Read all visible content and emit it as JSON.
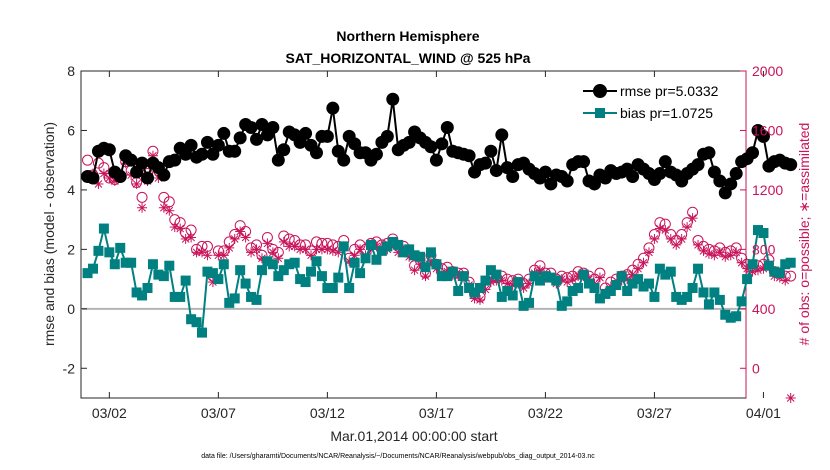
{
  "chart_data": {
    "type": "line",
    "title": "Northern Hemisphere",
    "subtitle": "SAT_HORIZONTAL_WIND @ 525 hPa",
    "xlabel": "Mar.01,2014 00:00:00 start",
    "ylabel": "rmse and bias (model - observation)",
    "ylabel_right": "# of obs: o=possible; ∗=assimilated",
    "footnote": "data file: /Users/gharamti/Documents/NCAR/Reanalysis/~/Documents/NCAR/Reanalysis/webpub/obs_diag_output_2014-03.nc",
    "xlim": [
      0.7,
      31.2
    ],
    "ylim": [
      -3,
      8
    ],
    "ylim_right": [
      -200,
      2000
    ],
    "x_ticks": [
      2,
      7,
      12,
      17,
      22,
      27,
      32
    ],
    "x_tick_labels": [
      "03/02",
      "03/07",
      "03/12",
      "03/17",
      "03/22",
      "03/27",
      "04/01"
    ],
    "y_ticks": [
      -2,
      0,
      2,
      4,
      6,
      8
    ],
    "y_tick_labels": [
      "-2",
      "0",
      "2",
      "4",
      "6",
      "8"
    ],
    "y_right_ticks": [
      0,
      400,
      800,
      1200,
      1600,
      2000
    ],
    "y_right_tick_labels": [
      "0",
      "400",
      "800",
      "1200",
      "1600",
      "2000"
    ],
    "colors": {
      "rmse": "#000000",
      "bias": "#008080",
      "obs": "#c8145a",
      "zero_line": "#b4b4b4",
      "axis": "#262626"
    },
    "legend": {
      "position": "top-right",
      "entries": [
        "rmse pr=5.0332",
        "bias pr=1.0725"
      ]
    },
    "series": [
      {
        "name": "rmse pr=5.0332",
        "axis": "left",
        "marker": "circle",
        "x_start": 1.0,
        "x_step": 0.25,
        "values": [
          4.45,
          4.4,
          5.3,
          5.4,
          5.35,
          4.6,
          4.45,
          5.15,
          5.0,
          4.6,
          4.9,
          4.4,
          4.9,
          4.75,
          4.5,
          4.95,
          5.0,
          5.4,
          5.2,
          5.5,
          5.1,
          5.2,
          5.6,
          5.2,
          5.5,
          5.9,
          5.3,
          5.3,
          5.75,
          6.2,
          6.1,
          5.7,
          6.2,
          5.85,
          6.1,
          5.0,
          5.35,
          5.95,
          5.85,
          5.6,
          5.9,
          5.5,
          5.25,
          5.8,
          5.8,
          6.75,
          5.3,
          5.0,
          5.8,
          5.55,
          5.25,
          5.25,
          5.0,
          5.2,
          5.6,
          5.8,
          7.05,
          5.35,
          5.5,
          5.6,
          5.95,
          5.75,
          5.6,
          5.45,
          5.0,
          5.55,
          6.1,
          5.3,
          5.25,
          5.2,
          5.15,
          4.6,
          4.85,
          4.9,
          5.3,
          4.65,
          5.85,
          4.75,
          4.45,
          4.85,
          4.9,
          4.7,
          4.55,
          4.4,
          4.6,
          4.2,
          4.5,
          4.45,
          4.3,
          4.85,
          4.95,
          4.95,
          4.3,
          4.2,
          4.5,
          4.4,
          4.65,
          4.55,
          4.6,
          4.7,
          4.45,
          4.85,
          4.7,
          4.55,
          4.35,
          4.55,
          4.95,
          4.6,
          4.5,
          4.3,
          4.55,
          4.7,
          4.85,
          5.2,
          5.25,
          4.6,
          4.3,
          3.9,
          4.2,
          4.55,
          4.95,
          5.05,
          5.25,
          6.0,
          5.8,
          4.8,
          4.95,
          5.0,
          4.9,
          4.85
        ]
      },
      {
        "name": "bias pr=1.0725",
        "axis": "left",
        "marker": "square",
        "x_start": 1.0,
        "x_step": 0.25,
        "values": [
          1.2,
          1.35,
          1.95,
          2.7,
          1.9,
          1.5,
          2.05,
          1.55,
          1.55,
          0.55,
          0.45,
          0.7,
          1.5,
          1.15,
          1.1,
          1.45,
          0.4,
          0.4,
          0.95,
          -0.35,
          -0.45,
          -0.8,
          1.25,
          1.2,
          1.0,
          1.5,
          0.2,
          0.35,
          1.3,
          0.85,
          0.4,
          0.3,
          1.3,
          1.6,
          1.5,
          1.1,
          1.3,
          1.5,
          1.55,
          1.0,
          0.9,
          1.25,
          1.6,
          1.1,
          0.7,
          0.7,
          1.05,
          2.1,
          0.7,
          1.55,
          1.2,
          1.7,
          2.15,
          1.65,
          1.95,
          2.1,
          2.25,
          2.15,
          1.9,
          2.0,
          1.8,
          1.75,
          1.4,
          1.9,
          1.5,
          1.1,
          1.1,
          1.25,
          0.6,
          1.1,
          0.7,
          0.55,
          0.7,
          0.95,
          1.3,
          1.15,
          0.4,
          0.6,
          0.45,
          0.9,
          0.1,
          0.2,
          1.1,
          0.95,
          1.1,
          1.05,
          0.95,
          0.1,
          0.25,
          0.6,
          0.7,
          1.15,
          0.85,
          0.7,
          0.35,
          0.5,
          0.6,
          0.8,
          1.1,
          0.6,
          0.85,
          1.0,
          0.75,
          0.85,
          0.4,
          1.35,
          1.15,
          1.25,
          0.4,
          0.3,
          0.4,
          0.7,
          1.35,
          0.55,
          0.15,
          0.55,
          0.3,
          -0.2,
          -0.3,
          -0.25,
          0.25,
          1.0,
          1.5,
          2.65,
          2.55,
          1.45,
          1.25,
          1.2,
          1.5,
          1.55
        ]
      },
      {
        "name": "possible",
        "axis": "right",
        "marker": "circle-open",
        "x_start": 1.0,
        "x_step": 0.25,
        "values": [
          1400,
          1300,
          1380,
          1350,
          1280,
          1270,
          1300,
          1390,
          1330,
          1250,
          1150,
          1310,
          1460,
          1330,
          1150,
          1120,
          1000,
          980,
          910,
          930,
          800,
          820,
          820,
          620,
          790,
          790,
          850,
          900,
          960,
          920,
          810,
          830,
          760,
          880,
          800,
          780,
          890,
          870,
          860,
          830,
          830,
          790,
          850,
          840,
          840,
          830,
          820,
          860,
          740,
          800,
          830,
          800,
          840,
          850,
          830,
          840,
          870,
          820,
          820,
          780,
          690,
          730,
          640,
          760,
          700,
          670,
          680,
          650,
          640,
          640,
          580,
          500,
          480,
          560,
          610,
          610,
          620,
          600,
          590,
          600,
          570,
          600,
          660,
          690,
          640,
          640,
          600,
          620,
          610,
          620,
          650,
          640,
          620,
          600,
          640,
          540,
          580,
          600,
          620,
          630,
          660,
          700,
          740,
          810,
          900,
          980,
          970,
          900,
          860,
          900,
          980,
          1050,
          860,
          820,
          800,
          790,
          810,
          780,
          790,
          810,
          740,
          700,
          680,
          690,
          700,
          730,
          650,
          640,
          620,
          620
        ]
      },
      {
        "name": "assimilated",
        "axis": "right",
        "marker": "asterisk",
        "x_start": 1.0,
        "x_step": 0.25,
        "values": [
          1290,
          1310,
          1240,
          1310,
          1280,
          1260,
          1280,
          1380,
          1300,
          1240,
          1080,
          1260,
          1430,
          1280,
          1080,
          1060,
          950,
          940,
          870,
          880,
          780,
          780,
          760,
          580,
          760,
          760,
          810,
          870,
          920,
          880,
          780,
          800,
          740,
          840,
          780,
          740,
          850,
          820,
          820,
          800,
          800,
          760,
          800,
          800,
          800,
          790,
          780,
          820,
          720,
          760,
          800,
          760,
          800,
          820,
          800,
          800,
          840,
          780,
          790,
          750,
          660,
          700,
          620,
          720,
          670,
          640,
          650,
          630,
          620,
          620,
          560,
          470,
          460,
          530,
          580,
          590,
          590,
          570,
          560,
          570,
          540,
          570,
          640,
          660,
          610,
          610,
          570,
          600,
          580,
          600,
          620,
          620,
          600,
          570,
          610,
          510,
          550,
          570,
          590,
          600,
          630,
          670,
          710,
          780,
          870,
          940,
          930,
          870,
          830,
          870,
          950,
          1010,
          830,
          790,
          770,
          760,
          780,
          750,
          760,
          780,
          710,
          670,
          650,
          660,
          670,
          700,
          620,
          610,
          590,
          -200
        ]
      }
    ]
  }
}
